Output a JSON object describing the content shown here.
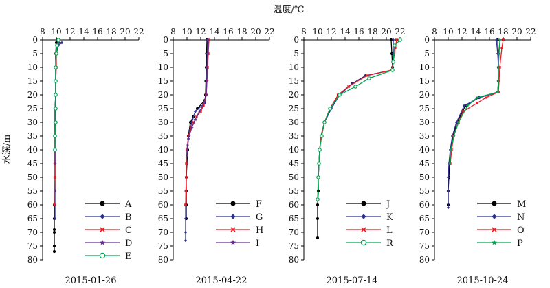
{
  "figure": {
    "xlabel": "温度/℃",
    "ylabel": "水深/m"
  },
  "colors": {
    "black": "#000000",
    "blue": "#2e3192",
    "red": "#ed1c24",
    "purple": "#662d91",
    "green": "#00a651"
  },
  "chart_data": [
    {
      "type": "line",
      "date": "2015-01-26",
      "xlabel": "温度/℃",
      "ylabel": "水深/m",
      "xlim": [
        8,
        22
      ],
      "ylim": [
        0,
        80
      ],
      "y_inverted": true,
      "xticks": [
        8,
        10,
        12,
        14,
        16,
        18,
        20,
        22
      ],
      "yticks": [
        0,
        5,
        10,
        15,
        20,
        25,
        30,
        35,
        40,
        45,
        50,
        55,
        60,
        65,
        70,
        75,
        80
      ],
      "legend_position": "bottom-right",
      "series": [
        {
          "name": "A",
          "color": "#000000",
          "marker": "circle-filled",
          "x": [
            10.1,
            10.0,
            9.9,
            9.9,
            9.9,
            9.9,
            9.8,
            9.8,
            9.8,
            9.8,
            9.8,
            9.8,
            9.8,
            9.7,
            9.7,
            9.7,
            9.7,
            9.7,
            9.7
          ],
          "y": [
            0,
            1,
            5,
            10,
            15,
            20,
            25,
            30,
            35,
            40,
            45,
            50,
            55,
            60,
            65,
            69,
            70,
            75,
            77
          ]
        },
        {
          "name": "B",
          "color": "#2e3192",
          "marker": "diamond-filled",
          "x": [
            10.8,
            10.3,
            10.0,
            9.9,
            9.9,
            9.9,
            9.9,
            9.8,
            9.8,
            9.8,
            9.8,
            9.8,
            9.8,
            9.8,
            9.8
          ],
          "y": [
            1,
            2,
            5,
            10,
            15,
            20,
            25,
            30,
            35,
            40,
            45,
            50,
            55,
            60,
            65
          ]
        },
        {
          "name": "C",
          "color": "#ed1c24",
          "marker": "x",
          "x": [
            10.3,
            10.1,
            10.0,
            10.0,
            9.9,
            9.9,
            9.9,
            9.9,
            9.8,
            9.8,
            9.8,
            9.8,
            9.7
          ],
          "y": [
            0,
            2,
            5,
            10,
            15,
            20,
            25,
            30,
            35,
            40,
            45,
            50,
            60
          ]
        },
        {
          "name": "D",
          "color": "#662d91",
          "marker": "star-filled",
          "x": [
            10.5,
            10.2,
            10.0,
            9.9,
            9.9,
            9.9,
            9.8,
            9.8,
            9.8,
            9.8
          ],
          "y": [
            1,
            2,
            5,
            10,
            15,
            20,
            25,
            30,
            40,
            45
          ]
        },
        {
          "name": "E",
          "color": "#00a651",
          "marker": "circle-open",
          "x": [
            10.3,
            10.1,
            10.0,
            9.9,
            9.9,
            9.9,
            9.9,
            9.9,
            9.8,
            9.8
          ],
          "y": [
            0,
            2,
            5,
            10,
            15,
            20,
            25,
            30,
            35,
            40
          ]
        }
      ]
    },
    {
      "type": "line",
      "date": "2015-04-22",
      "xlabel": "温度/℃",
      "ylabel": "水深/m",
      "xlim": [
        8,
        22
      ],
      "ylim": [
        0,
        80
      ],
      "y_inverted": true,
      "xticks": [
        8,
        10,
        12,
        14,
        16,
        18,
        20,
        22
      ],
      "yticks": [
        0,
        5,
        10,
        15,
        20,
        25,
        30,
        35,
        40,
        45,
        50,
        55,
        60,
        65,
        70,
        75,
        80
      ],
      "legend_position": "bottom-right",
      "series": [
        {
          "name": "F",
          "color": "#000000",
          "marker": "circle-filled",
          "x": [
            12.9,
            12.85,
            12.8,
            12.75,
            12.7,
            12.6,
            11.5,
            10.9,
            10.5,
            10.2,
            10.1,
            10.0,
            9.9,
            9.9,
            9.9,
            9.9
          ],
          "y": [
            0,
            5,
            10,
            15,
            20,
            22,
            25,
            28,
            30,
            35,
            40,
            45,
            50,
            55,
            60,
            65
          ]
        },
        {
          "name": "G",
          "color": "#2e3192",
          "marker": "diamond-filled",
          "x": [
            13.0,
            12.95,
            12.9,
            12.85,
            12.8,
            12.6,
            11.2,
            10.7,
            10.4,
            10.2,
            10.0,
            9.95,
            9.9,
            9.85,
            9.8,
            9.8,
            9.8,
            9.8
          ],
          "y": [
            0,
            5,
            10,
            15,
            20,
            23,
            26,
            30,
            33,
            36,
            40,
            45,
            50,
            55,
            60,
            65,
            70,
            73
          ]
        },
        {
          "name": "H",
          "color": "#ed1c24",
          "marker": "x",
          "x": [
            13.2,
            13.1,
            13.0,
            12.9,
            12.8,
            12.4,
            12.0,
            11.4,
            11.0,
            10.6,
            10.2,
            10.0,
            9.9,
            9.9,
            9.85,
            9.8
          ],
          "y": [
            0,
            5,
            10,
            15,
            20,
            24,
            26,
            28,
            30,
            32,
            35,
            40,
            45,
            50,
            55,
            60
          ]
        },
        {
          "name": "I",
          "color": "#662d91",
          "marker": "star-filled",
          "x": [
            13.1,
            13.0,
            12.95,
            12.9,
            12.8,
            12.3,
            11.8,
            11.2,
            10.7,
            10.3,
            10.1,
            10.0
          ],
          "y": [
            0,
            5,
            10,
            15,
            20,
            24,
            26,
            29,
            32,
            35,
            38,
            42
          ]
        }
      ]
    },
    {
      "type": "line",
      "date": "2015-07-14",
      "xlabel": "温度/℃",
      "ylabel": "水深/m",
      "xlim": [
        8,
        22
      ],
      "ylim": [
        0,
        80
      ],
      "y_inverted": true,
      "xticks": [
        8,
        10,
        12,
        14,
        16,
        18,
        20,
        22
      ],
      "yticks": [
        0,
        5,
        10,
        15,
        20,
        25,
        30,
        35,
        40,
        45,
        50,
        55,
        60,
        65,
        70,
        75,
        80
      ],
      "legend_position": "bottom-right",
      "series": [
        {
          "name": "J",
          "color": "#000000",
          "marker": "circle-filled",
          "x": [
            20.7,
            20.8,
            20.9,
            20.9,
            17.0,
            15.0,
            13.0,
            11.8,
            11.0,
            10.5,
            10.3,
            10.2,
            10.1,
            10.1,
            10.0,
            10.0,
            10.0
          ],
          "y": [
            0,
            5,
            10,
            11,
            13,
            16,
            20,
            25,
            30,
            35,
            40,
            45,
            50,
            55,
            60,
            65,
            72
          ]
        },
        {
          "name": "K",
          "color": "#2e3192",
          "marker": "diamond-filled",
          "x": [
            21.0,
            21.0,
            20.9,
            20.8,
            17.0,
            15.0,
            13.2,
            12.0,
            11.0,
            10.5,
            10.3,
            10.2,
            10.1
          ],
          "y": [
            0,
            5,
            10,
            11,
            13,
            16,
            20,
            25,
            30,
            35,
            40,
            45,
            50
          ]
        },
        {
          "name": "L",
          "color": "#ed1c24",
          "marker": "x",
          "x": [
            21.5,
            21.3,
            21.0,
            20.8,
            17.2,
            14.5,
            13.0,
            11.8,
            11.0,
            10.5,
            10.3,
            10.2
          ],
          "y": [
            0,
            3,
            8,
            11,
            13,
            17,
            20,
            25,
            30,
            35,
            40,
            45
          ]
        },
        {
          "name": "R",
          "color": "#00a651",
          "marker": "circle-open",
          "x": [
            22.0,
            21.2,
            21.0,
            20.9,
            17.5,
            15.5,
            13.2,
            11.8,
            11.0,
            10.6,
            10.3,
            10.2,
            10.1,
            10.0
          ],
          "y": [
            0,
            2,
            8,
            11,
            14,
            17,
            20,
            25,
            30,
            35,
            40,
            45,
            50,
            58
          ]
        }
      ]
    },
    {
      "type": "line",
      "date": "2015-10-24",
      "xlabel": "温度/℃",
      "ylabel": "水深/m",
      "xlim": [
        8,
        22
      ],
      "ylim": [
        0,
        80
      ],
      "y_inverted": true,
      "xticks": [
        8,
        10,
        12,
        14,
        16,
        18,
        20,
        22
      ],
      "yticks": [
        0,
        5,
        10,
        15,
        20,
        25,
        30,
        35,
        40,
        45,
        50,
        55,
        60,
        65,
        70,
        75,
        80
      ],
      "legend_position": "bottom-right",
      "series": [
        {
          "name": "M",
          "color": "#000000",
          "marker": "circle-filled",
          "x": [
            17.2,
            17.3,
            17.3,
            17.3,
            17.2,
            14.5,
            12.5,
            11.3,
            10.7,
            10.4,
            10.2,
            10.1,
            10.0,
            10.0
          ],
          "y": [
            0,
            5,
            10,
            15,
            19,
            21,
            24,
            30,
            35,
            40,
            45,
            50,
            55,
            60
          ]
        },
        {
          "name": "N",
          "color": "#2e3192",
          "marker": "diamond-filled",
          "x": [
            17.0,
            17.2,
            17.3,
            17.3,
            17.3,
            14.5,
            12.3,
            11.2,
            10.6,
            10.3,
            10.1,
            10.0,
            10.0,
            10.0
          ],
          "y": [
            0,
            5,
            10,
            15,
            19,
            21,
            24,
            30,
            35,
            40,
            45,
            50,
            55,
            61
          ]
        },
        {
          "name": "O",
          "color": "#ed1c24",
          "marker": "x",
          "x": [
            18.0,
            17.8,
            17.5,
            17.4,
            17.3,
            15.5,
            14.2,
            12.2,
            11.5,
            10.8,
            10.5,
            10.3
          ],
          "y": [
            0,
            3,
            10,
            15,
            19,
            21,
            23,
            26,
            30,
            35,
            40,
            45
          ]
        },
        {
          "name": "P",
          "color": "#00a651",
          "marker": "star-filled",
          "x": [
            17.5,
            17.4,
            17.3,
            17.3,
            17.2,
            14.2,
            12.8,
            11.5,
            10.8,
            10.4,
            10.2
          ],
          "y": [
            0,
            5,
            10,
            15,
            19,
            21,
            24,
            30,
            35,
            40,
            45
          ]
        }
      ]
    }
  ]
}
